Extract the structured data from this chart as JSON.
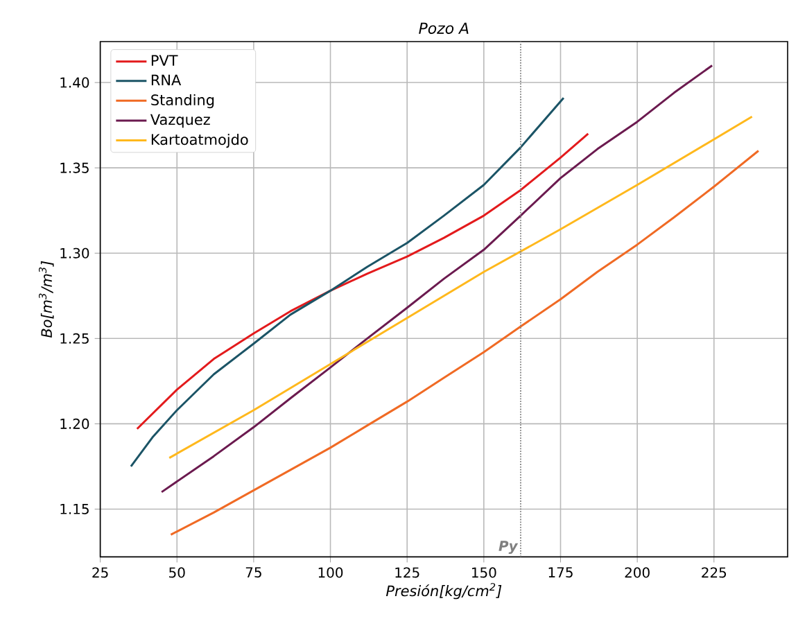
{
  "chart_data": {
    "type": "line",
    "title": "Pozo A",
    "xlabel": "Presión[kg/cm$^{2}$]",
    "ylabel": "Bo[m$^{3}$/m$^{3}$]",
    "xlim": [
      25,
      249
    ],
    "ylim": [
      1.122,
      1.424
    ],
    "xticks": [
      25,
      50,
      75,
      100,
      125,
      150,
      175,
      200,
      225
    ],
    "yticks": [
      {
        "value": 1.15,
        "label": "1.15"
      },
      {
        "value": 1.2,
        "label": "1.20"
      },
      {
        "value": 1.25,
        "label": "1.25"
      },
      {
        "value": 1.3,
        "label": "1.30"
      },
      {
        "value": 1.35,
        "label": "1.35"
      },
      {
        "value": 1.4,
        "label": "1.40"
      }
    ],
    "grid": true,
    "legend": "top left",
    "line_style": "solid",
    "ref_lines": [
      {
        "axis": "x",
        "value": 162,
        "label": "Py",
        "color": "#808080",
        "line_style": "dotted"
      }
    ],
    "series": [
      {
        "name": "PVT",
        "color": "#e31a1c",
        "x": [
          37,
          50,
          62,
          75,
          87,
          100,
          112,
          125,
          137,
          150,
          162,
          175,
          184
        ],
        "values": [
          1.197,
          1.22,
          1.238,
          1.253,
          1.266,
          1.278,
          1.288,
          1.298,
          1.309,
          1.322,
          1.337,
          1.356,
          1.37
        ]
      },
      {
        "name": "RNA",
        "color": "#1b5466",
        "x": [
          35,
          42,
          50,
          62,
          75,
          87,
          100,
          112,
          125,
          137,
          150,
          162,
          176
        ],
        "values": [
          1.175,
          1.192,
          1.208,
          1.229,
          1.247,
          1.264,
          1.278,
          1.292,
          1.306,
          1.322,
          1.34,
          1.362,
          1.391
        ]
      },
      {
        "name": "Standing",
        "color": "#f06a24",
        "x": [
          48,
          62,
          75,
          87,
          100,
          112,
          125,
          137,
          150,
          162,
          175,
          187,
          200,
          212,
          225,
          239.5
        ],
        "values": [
          1.135,
          1.148,
          1.161,
          1.173,
          1.186,
          1.199,
          1.213,
          1.227,
          1.242,
          1.257,
          1.273,
          1.289,
          1.305,
          1.321,
          1.339,
          1.36
        ]
      },
      {
        "name": "Vazquez",
        "color": "#6b1a4f",
        "x": [
          45,
          62,
          75,
          87,
          100,
          112,
          125,
          137,
          150,
          162,
          175,
          187,
          200,
          212,
          224.4
        ],
        "values": [
          1.16,
          1.181,
          1.198,
          1.215,
          1.233,
          1.25,
          1.268,
          1.285,
          1.302,
          1.322,
          1.344,
          1.361,
          1.377,
          1.394,
          1.41
        ]
      },
      {
        "name": "Kartoatmojdo",
        "color": "#ffb81c",
        "x": [
          47.5,
          75,
          100,
          125,
          150,
          175,
          200,
          237.4
        ],
        "values": [
          1.18,
          1.208,
          1.235,
          1.262,
          1.289,
          1.314,
          1.34,
          1.38
        ]
      }
    ]
  }
}
